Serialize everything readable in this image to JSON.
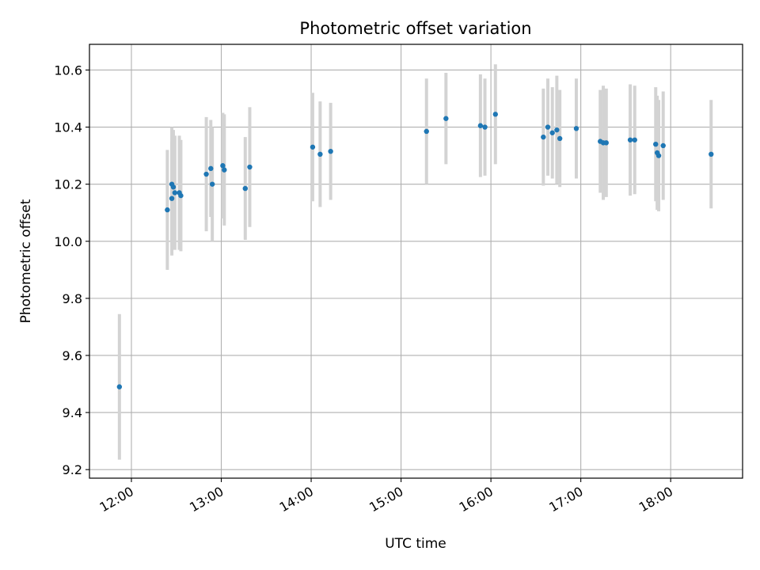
{
  "chart_data": {
    "type": "scatter",
    "title": "Photometric offset variation",
    "xlabel": "UTC time",
    "ylabel": "Photometric offset",
    "xlim": [
      "11:32",
      "18:48"
    ],
    "ylim": [
      9.17,
      10.69
    ],
    "x_ticks": [
      "12:00",
      "13:00",
      "14:00",
      "15:00",
      "16:00",
      "17:00",
      "18:00"
    ],
    "y_ticks": [
      "9.2",
      "9.4",
      "9.6",
      "9.8",
      "10.0",
      "10.2",
      "10.4",
      "10.6"
    ],
    "grid": true,
    "colors": {
      "points": "#1f77b4",
      "errorbars": "#d3d3d3",
      "grid": "#b0b0b0"
    },
    "series": [
      {
        "points": [
          {
            "x": "11:52",
            "y": 9.49,
            "err": 0.255
          },
          {
            "x": "12:24",
            "y": 10.11,
            "err": 0.21
          },
          {
            "x": "12:27",
            "y": 10.2,
            "err": 0.2
          },
          {
            "x": "12:27",
            "y": 10.15,
            "err": 0.2
          },
          {
            "x": "12:28",
            "y": 10.19,
            "err": 0.2
          },
          {
            "x": "12:29",
            "y": 10.17,
            "err": 0.2
          },
          {
            "x": "12:32",
            "y": 10.17,
            "err": 0.2
          },
          {
            "x": "12:33",
            "y": 10.16,
            "err": 0.195
          },
          {
            "x": "12:50",
            "y": 10.235,
            "err": 0.2
          },
          {
            "x": "12:53",
            "y": 10.255,
            "err": 0.17
          },
          {
            "x": "12:54",
            "y": 10.2,
            "err": 0.2
          },
          {
            "x": "13:01",
            "y": 10.265,
            "err": 0.185
          },
          {
            "x": "13:02",
            "y": 10.25,
            "err": 0.195
          },
          {
            "x": "13:16",
            "y": 10.185,
            "err": 0.18
          },
          {
            "x": "13:19",
            "y": 10.26,
            "err": 0.21
          },
          {
            "x": "14:01",
            "y": 10.33,
            "err": 0.19
          },
          {
            "x": "14:06",
            "y": 10.305,
            "err": 0.185
          },
          {
            "x": "14:13",
            "y": 10.315,
            "err": 0.17
          },
          {
            "x": "15:17",
            "y": 10.385,
            "err": 0.185
          },
          {
            "x": "15:30",
            "y": 10.43,
            "err": 0.16
          },
          {
            "x": "15:53",
            "y": 10.405,
            "err": 0.18
          },
          {
            "x": "15:56",
            "y": 10.4,
            "err": 0.17
          },
          {
            "x": "16:03",
            "y": 10.445,
            "err": 0.175
          },
          {
            "x": "16:35",
            "y": 10.365,
            "err": 0.17
          },
          {
            "x": "16:38",
            "y": 10.4,
            "err": 0.17
          },
          {
            "x": "16:41",
            "y": 10.38,
            "err": 0.16
          },
          {
            "x": "16:44",
            "y": 10.39,
            "err": 0.19
          },
          {
            "x": "16:46",
            "y": 10.36,
            "err": 0.17
          },
          {
            "x": "16:57",
            "y": 10.395,
            "err": 0.175
          },
          {
            "x": "17:13",
            "y": 10.35,
            "err": 0.18
          },
          {
            "x": "17:15",
            "y": 10.345,
            "err": 0.2
          },
          {
            "x": "17:17",
            "y": 10.345,
            "err": 0.19
          },
          {
            "x": "17:33",
            "y": 10.355,
            "err": 0.195
          },
          {
            "x": "17:36",
            "y": 10.355,
            "err": 0.19
          },
          {
            "x": "17:50",
            "y": 10.34,
            "err": 0.2
          },
          {
            "x": "17:51",
            "y": 10.31,
            "err": 0.2
          },
          {
            "x": "17:52",
            "y": 10.3,
            "err": 0.195
          },
          {
            "x": "17:55",
            "y": 10.335,
            "err": 0.19
          },
          {
            "x": "18:27",
            "y": 10.305,
            "err": 0.19
          }
        ]
      }
    ]
  }
}
